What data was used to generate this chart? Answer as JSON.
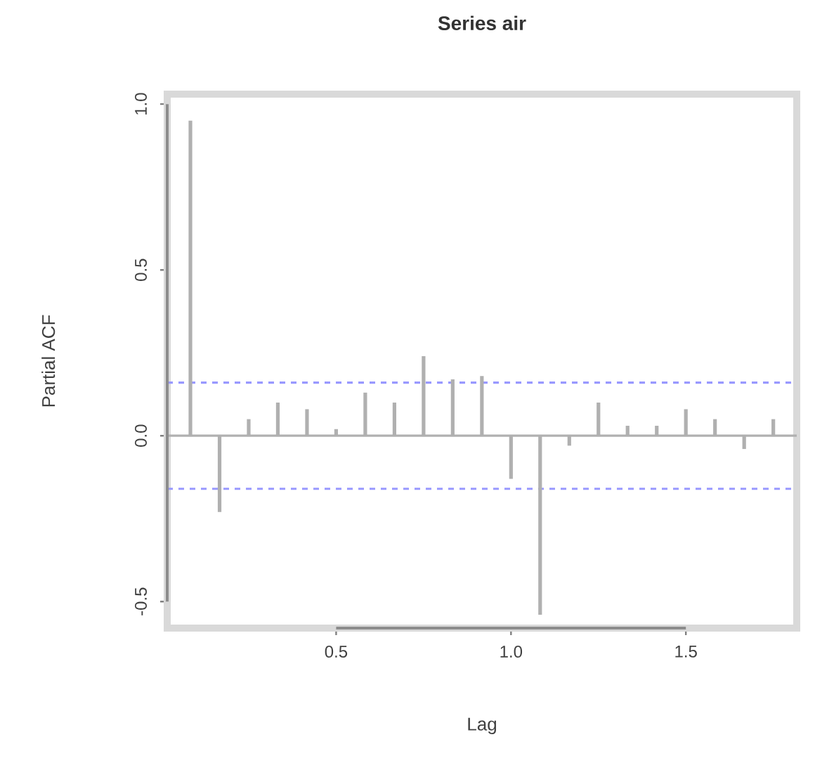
{
  "chart_data": {
    "type": "bar",
    "title": "Series  air",
    "xlabel": "Lag",
    "ylabel": "Partial ACF",
    "x": [
      0.0833,
      0.1667,
      0.25,
      0.3333,
      0.4167,
      0.5,
      0.5833,
      0.6667,
      0.75,
      0.8333,
      0.9167,
      1.0,
      1.0833,
      1.1667,
      1.25,
      1.3333,
      1.4167,
      1.5,
      1.5833,
      1.6667,
      1.75
    ],
    "values": [
      0.95,
      -0.23,
      0.05,
      0.1,
      0.08,
      0.02,
      0.13,
      0.1,
      0.24,
      0.17,
      0.18,
      -0.13,
      -0.54,
      -0.03,
      0.1,
      0.03,
      0.03,
      0.08,
      0.05,
      -0.04,
      0.05
    ],
    "color": "#b0b0b0",
    "xlim": [
      0.017,
      1.817
    ],
    "ylim": [
      -0.58,
      1.03
    ],
    "xticks": [
      0.5,
      {
        "value": 1,
        "label": "1.0"
      },
      1.5
    ],
    "yticks": [
      -0.5,
      {
        "value": 0,
        "label": "0.0"
      },
      0.5,
      {
        "value": 1,
        "label": "1.0"
      }
    ],
    "ref_lines": [
      {
        "axis": "y",
        "value": 0,
        "color": "#b0b0b0",
        "line_style": "solid"
      },
      {
        "axis": "y",
        "value": 0.16,
        "color": "#9999ff",
        "line_style": "dashed"
      },
      {
        "axis": "y",
        "value": -0.16,
        "color": "#9999ff",
        "line_style": "dashed"
      }
    ]
  }
}
